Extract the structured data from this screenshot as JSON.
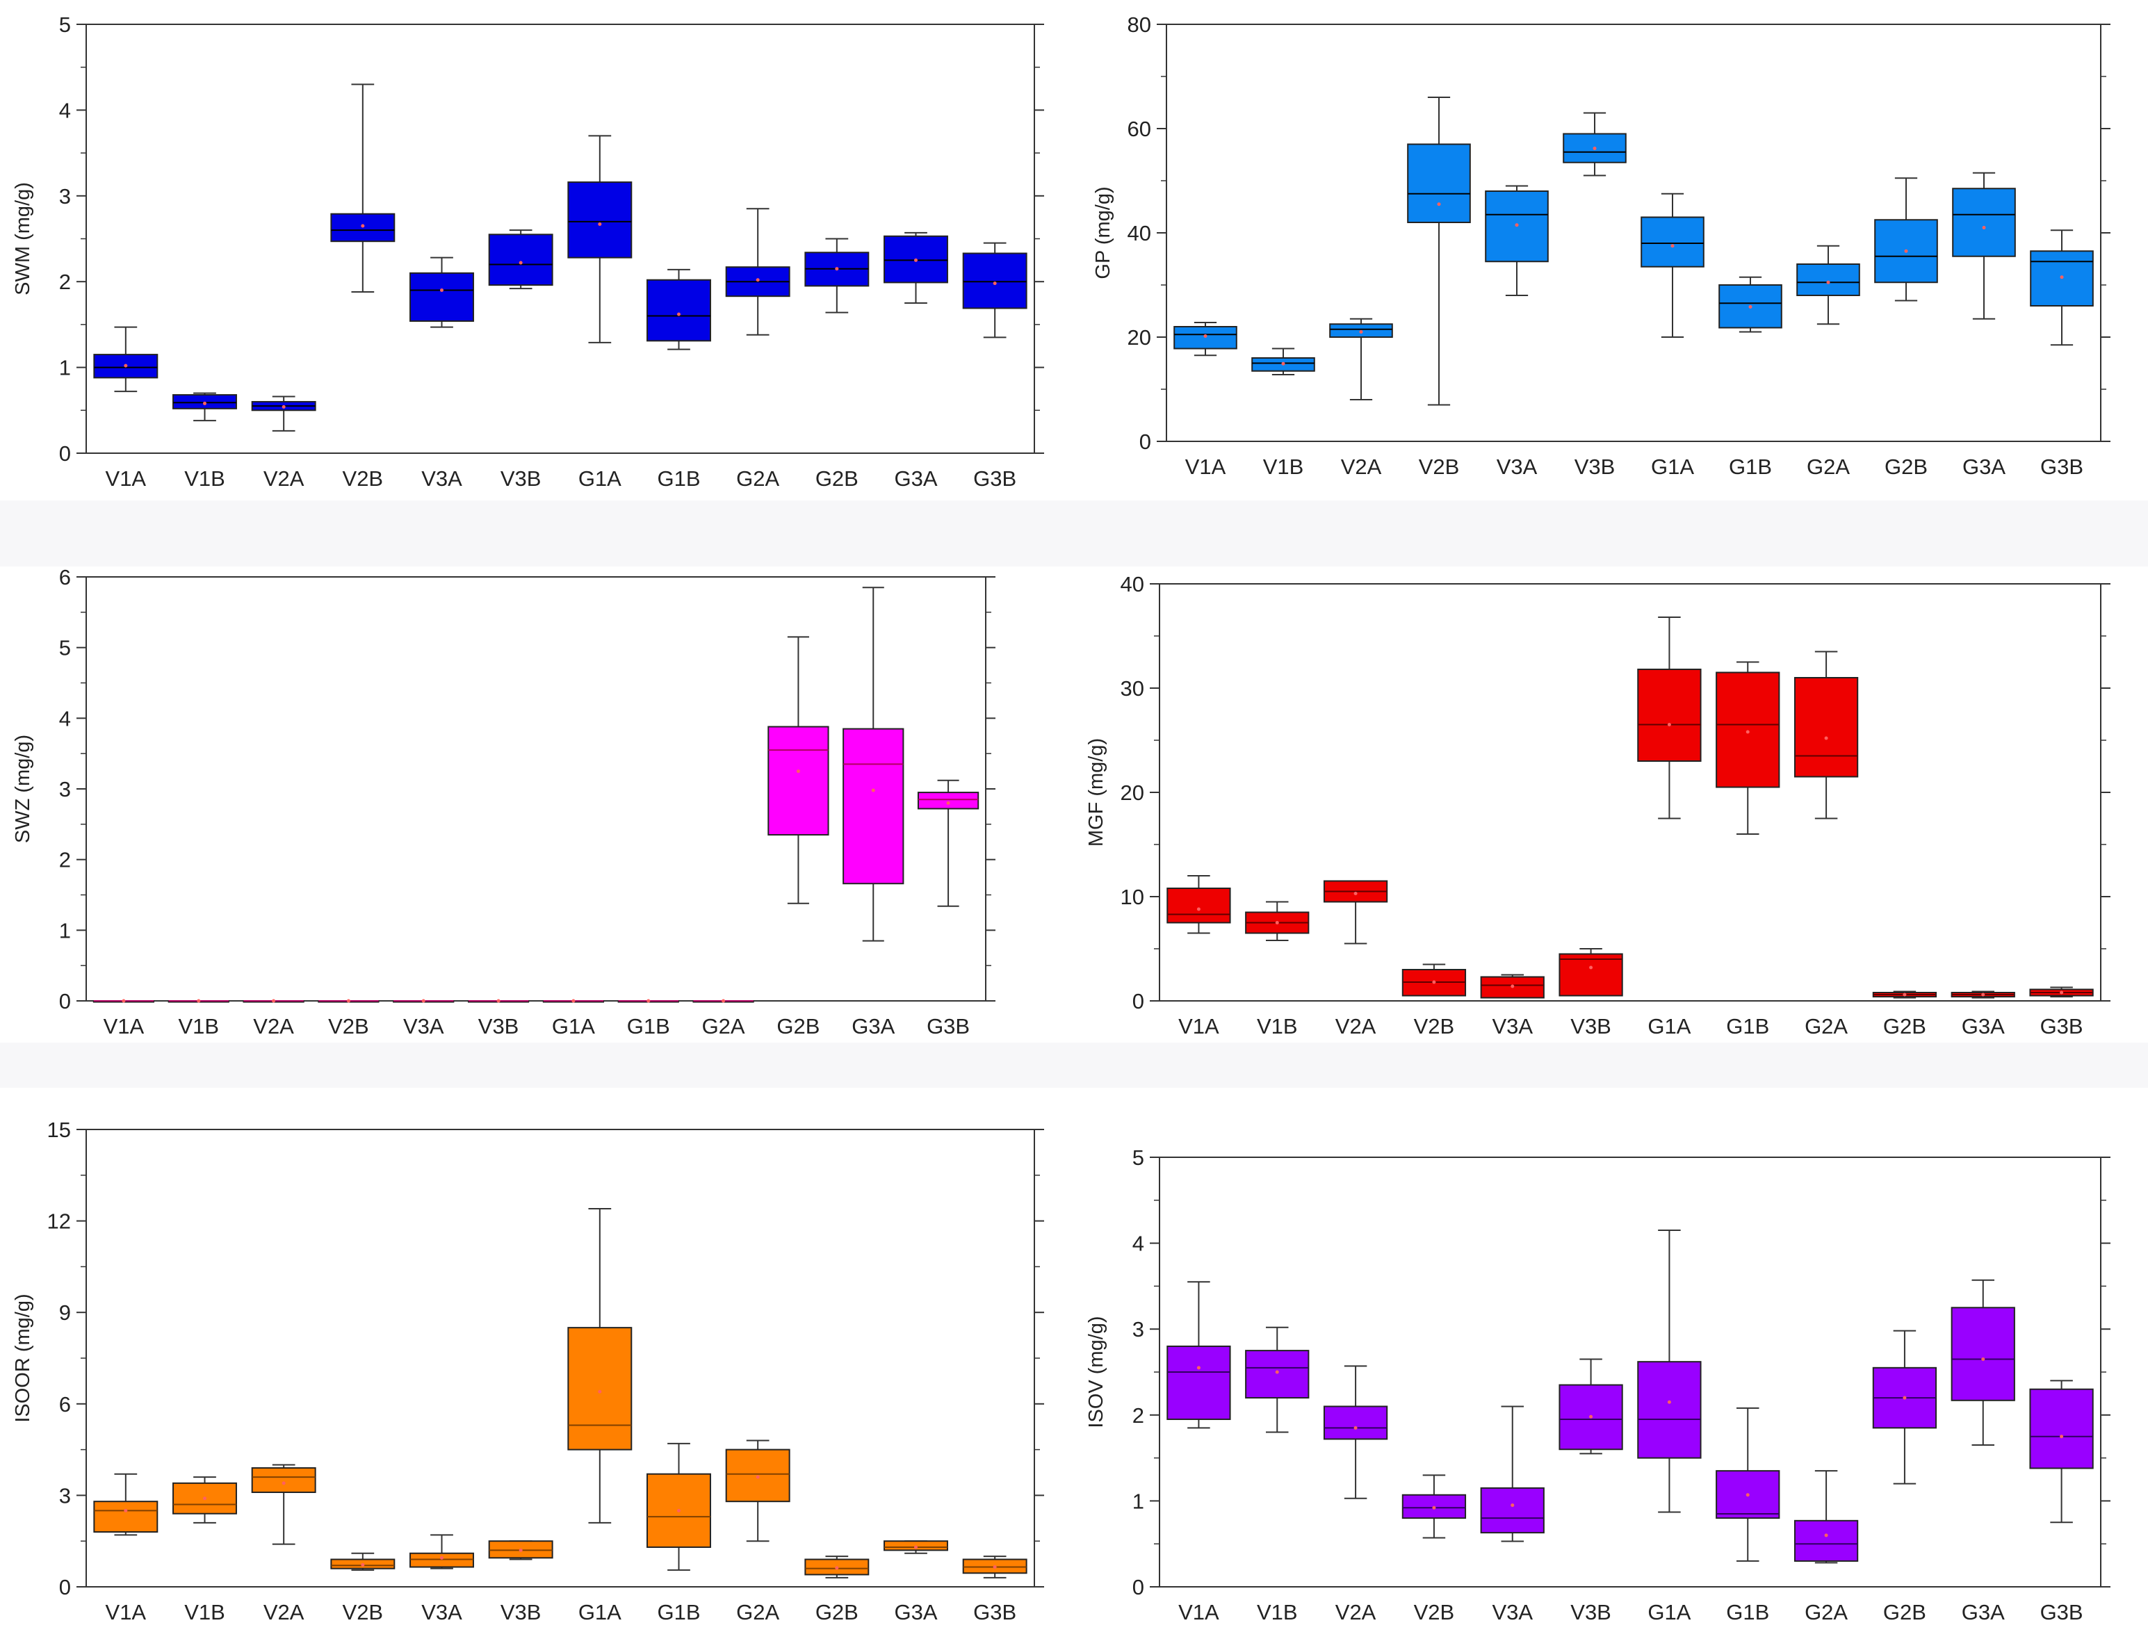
{
  "figure": {
    "panels_count": 6
  },
  "chart_data": [
    {
      "type": "box",
      "ylabel": "SWM (mg/g)",
      "ylim": [
        0,
        5
      ],
      "yticks": [
        0,
        1,
        2,
        3,
        4,
        5
      ],
      "color": "#0000e6",
      "median_color": "#000000",
      "categories": [
        "V1A",
        "V1B",
        "V2A",
        "V2B",
        "V3A",
        "V3B",
        "G1A",
        "G1B",
        "G2A",
        "G2B",
        "G3A",
        "G3B"
      ],
      "boxes": [
        {
          "min": 0.72,
          "q1": 0.88,
          "median": 1.0,
          "q3": 1.15,
          "max": 1.47,
          "mean": 1.02
        },
        {
          "min": 0.38,
          "q1": 0.52,
          "median": 0.59,
          "q3": 0.68,
          "max": 0.7,
          "mean": 0.58
        },
        {
          "min": 0.26,
          "q1": 0.5,
          "median": 0.55,
          "q3": 0.6,
          "max": 0.66,
          "mean": 0.54
        },
        {
          "min": 1.88,
          "q1": 2.47,
          "median": 2.6,
          "q3": 2.79,
          "max": 4.3,
          "mean": 2.65
        },
        {
          "min": 1.47,
          "q1": 1.54,
          "median": 1.9,
          "q3": 2.1,
          "max": 2.28,
          "mean": 1.9
        },
        {
          "min": 1.92,
          "q1": 1.96,
          "median": 2.2,
          "q3": 2.55,
          "max": 2.6,
          "mean": 2.22
        },
        {
          "min": 1.29,
          "q1": 2.28,
          "median": 2.7,
          "q3": 3.16,
          "max": 3.7,
          "mean": 2.67
        },
        {
          "min": 1.21,
          "q1": 1.31,
          "median": 1.6,
          "q3": 2.02,
          "max": 2.14,
          "mean": 1.62
        },
        {
          "min": 1.38,
          "q1": 1.83,
          "median": 2.0,
          "q3": 2.17,
          "max": 2.85,
          "mean": 2.02
        },
        {
          "min": 1.64,
          "q1": 1.95,
          "median": 2.15,
          "q3": 2.34,
          "max": 2.5,
          "mean": 2.15
        },
        {
          "min": 1.75,
          "q1": 1.99,
          "median": 2.25,
          "q3": 2.53,
          "max": 2.57,
          "mean": 2.25
        },
        {
          "min": 1.35,
          "q1": 1.69,
          "median": 2.0,
          "q3": 2.33,
          "max": 2.45,
          "mean": 1.98
        }
      ]
    },
    {
      "type": "box",
      "ylabel": "GP (mg/g)",
      "ylim": [
        0,
        80
      ],
      "yticks": [
        0,
        20,
        40,
        60,
        80
      ],
      "color": "#0a84f0",
      "median_color": "#000000",
      "categories": [
        "V1A",
        "V1B",
        "V2A",
        "V2B",
        "V3A",
        "V3B",
        "G1A",
        "G1B",
        "G2A",
        "G2B",
        "G3A",
        "G3B"
      ],
      "boxes": [
        {
          "min": 16.5,
          "q1": 17.8,
          "median": 20.5,
          "q3": 22.0,
          "max": 22.8,
          "mean": 20.2
        },
        {
          "min": 12.8,
          "q1": 13.5,
          "median": 15.0,
          "q3": 16.0,
          "max": 17.8,
          "mean": 14.9
        },
        {
          "min": 8.0,
          "q1": 20.0,
          "median": 21.5,
          "q3": 22.5,
          "max": 23.5,
          "mean": 21.0
        },
        {
          "min": 7.0,
          "q1": 42.0,
          "median": 47.5,
          "q3": 57.0,
          "max": 66.0,
          "mean": 45.5
        },
        {
          "min": 28.0,
          "q1": 34.5,
          "median": 43.5,
          "q3": 48.0,
          "max": 49.0,
          "mean": 41.5
        },
        {
          "min": 51.0,
          "q1": 53.5,
          "median": 55.5,
          "q3": 59.0,
          "max": 63.0,
          "mean": 56.2
        },
        {
          "min": 20.0,
          "q1": 33.5,
          "median": 38.0,
          "q3": 43.0,
          "max": 47.5,
          "mean": 37.5
        },
        {
          "min": 21.0,
          "q1": 21.8,
          "median": 26.5,
          "q3": 30.0,
          "max": 31.5,
          "mean": 25.8
        },
        {
          "min": 22.5,
          "q1": 28.0,
          "median": 30.5,
          "q3": 34.0,
          "max": 37.5,
          "mean": 30.5
        },
        {
          "min": 27.0,
          "q1": 30.5,
          "median": 35.5,
          "q3": 42.5,
          "max": 50.5,
          "mean": 36.5
        },
        {
          "min": 23.5,
          "q1": 35.5,
          "median": 43.5,
          "q3": 48.5,
          "max": 51.5,
          "mean": 41.0
        },
        {
          "min": 18.5,
          "q1": 26.0,
          "median": 34.5,
          "q3": 36.5,
          "max": 40.5,
          "mean": 31.5
        }
      ]
    },
    {
      "type": "box",
      "ylabel": "SWZ (mg/g)",
      "ylim": [
        0,
        6
      ],
      "yticks": [
        0,
        1,
        2,
        3,
        4,
        5,
        6
      ],
      "color": "#ff00ff",
      "median_color": "#b00060",
      "categories": [
        "V1A",
        "V1B",
        "V2A",
        "V2B",
        "V3A",
        "V3B",
        "G1A",
        "G1B",
        "G2A",
        "G2B",
        "G3A",
        "G3B"
      ],
      "boxes": [
        {
          "min": 0,
          "q1": 0,
          "median": 0,
          "q3": 0,
          "max": 0,
          "mean": 0
        },
        {
          "min": 0,
          "q1": 0,
          "median": 0,
          "q3": 0,
          "max": 0,
          "mean": 0
        },
        {
          "min": 0,
          "q1": 0,
          "median": 0,
          "q3": 0,
          "max": 0,
          "mean": 0
        },
        {
          "min": 0,
          "q1": 0,
          "median": 0,
          "q3": 0,
          "max": 0,
          "mean": 0
        },
        {
          "min": 0,
          "q1": 0,
          "median": 0,
          "q3": 0,
          "max": 0,
          "mean": 0
        },
        {
          "min": 0,
          "q1": 0,
          "median": 0,
          "q3": 0,
          "max": 0,
          "mean": 0
        },
        {
          "min": 0,
          "q1": 0,
          "median": 0,
          "q3": 0,
          "max": 0,
          "mean": 0
        },
        {
          "min": 0,
          "q1": 0,
          "median": 0,
          "q3": 0,
          "max": 0,
          "mean": 0
        },
        {
          "min": 0,
          "q1": 0,
          "median": 0,
          "q3": 0,
          "max": 0,
          "mean": 0
        },
        {
          "min": 1.38,
          "q1": 2.35,
          "median": 3.55,
          "q3": 3.88,
          "max": 5.15,
          "mean": 3.25
        },
        {
          "min": 0.85,
          "q1": 1.66,
          "median": 3.35,
          "q3": 3.85,
          "max": 5.85,
          "mean": 2.98
        },
        {
          "min": 1.34,
          "q1": 2.72,
          "median": 2.85,
          "q3": 2.95,
          "max": 3.12,
          "mean": 2.8
        }
      ]
    },
    {
      "type": "box",
      "ylabel": "MGF (mg/g)",
      "ylim": [
        0,
        40
      ],
      "yticks": [
        0,
        10,
        20,
        30,
        40
      ],
      "color": "#ee0000",
      "median_color": "#600000",
      "categories": [
        "V1A",
        "V1B",
        "V2A",
        "V2B",
        "V3A",
        "V3B",
        "G1A",
        "G1B",
        "G2A",
        "G2B",
        "G3A",
        "G3B"
      ],
      "boxes": [
        {
          "min": 6.5,
          "q1": 7.5,
          "median": 8.3,
          "q3": 10.8,
          "max": 12.0,
          "mean": 8.8
        },
        {
          "min": 5.8,
          "q1": 6.5,
          "median": 7.5,
          "q3": 8.5,
          "max": 9.5,
          "mean": 7.5
        },
        {
          "min": 5.5,
          "q1": 9.5,
          "median": 10.5,
          "q3": 11.5,
          "max": 11.5,
          "mean": 10.3
        },
        {
          "min": 0.5,
          "q1": 0.5,
          "median": 1.8,
          "q3": 3.0,
          "max": 3.5,
          "mean": 1.8
        },
        {
          "min": 0.3,
          "q1": 0.3,
          "median": 1.5,
          "q3": 2.3,
          "max": 2.5,
          "mean": 1.4
        },
        {
          "min": 0.5,
          "q1": 0.5,
          "median": 4.0,
          "q3": 4.5,
          "max": 5.0,
          "mean": 3.2
        },
        {
          "min": 17.5,
          "q1": 23.0,
          "median": 26.5,
          "q3": 31.8,
          "max": 36.8,
          "mean": 26.5
        },
        {
          "min": 16.0,
          "q1": 20.5,
          "median": 26.5,
          "q3": 31.5,
          "max": 32.5,
          "mean": 25.8
        },
        {
          "min": 17.5,
          "q1": 21.5,
          "median": 23.5,
          "q3": 31.0,
          "max": 33.5,
          "mean": 25.2
        },
        {
          "min": 0.3,
          "q1": 0.4,
          "median": 0.6,
          "q3": 0.8,
          "max": 0.9,
          "mean": 0.6
        },
        {
          "min": 0.3,
          "q1": 0.4,
          "median": 0.6,
          "q3": 0.8,
          "max": 0.9,
          "mean": 0.6
        },
        {
          "min": 0.4,
          "q1": 0.5,
          "median": 0.8,
          "q3": 1.1,
          "max": 1.3,
          "mean": 0.8
        }
      ]
    },
    {
      "type": "box",
      "ylabel": "ISOOR (mg/g)",
      "ylim": [
        0,
        15
      ],
      "yticks": [
        0,
        3,
        6,
        9,
        12,
        15
      ],
      "color": "#ff8000",
      "median_color": "#804000",
      "categories": [
        "V1A",
        "V1B",
        "V2A",
        "V2B",
        "V3A",
        "V3B",
        "G1A",
        "G1B",
        "G2A",
        "G2B",
        "G3A",
        "G3B"
      ],
      "boxes": [
        {
          "min": 1.7,
          "q1": 1.8,
          "median": 2.5,
          "q3": 2.8,
          "max": 3.7,
          "mean": 2.5
        },
        {
          "min": 2.1,
          "q1": 2.4,
          "median": 2.7,
          "q3": 3.4,
          "max": 3.6,
          "mean": 2.9
        },
        {
          "min": 1.4,
          "q1": 3.1,
          "median": 3.6,
          "q3": 3.9,
          "max": 4.0,
          "mean": 3.4
        },
        {
          "min": 0.55,
          "q1": 0.6,
          "median": 0.7,
          "q3": 0.9,
          "max": 1.1,
          "mean": 0.72
        },
        {
          "min": 0.6,
          "q1": 0.65,
          "median": 0.9,
          "q3": 1.1,
          "max": 1.7,
          "mean": 0.95
        },
        {
          "min": 0.9,
          "q1": 0.95,
          "median": 1.2,
          "q3": 1.5,
          "max": 1.5,
          "mean": 1.2
        },
        {
          "min": 2.1,
          "q1": 4.5,
          "median": 5.3,
          "q3": 8.5,
          "max": 12.4,
          "mean": 6.4
        },
        {
          "min": 0.55,
          "q1": 1.3,
          "median": 2.3,
          "q3": 3.7,
          "max": 4.7,
          "mean": 2.5
        },
        {
          "min": 1.5,
          "q1": 2.8,
          "median": 3.7,
          "q3": 4.5,
          "max": 4.8,
          "mean": 3.6
        },
        {
          "min": 0.3,
          "q1": 0.4,
          "median": 0.6,
          "q3": 0.9,
          "max": 1.0,
          "mean": 0.62
        },
        {
          "min": 1.1,
          "q1": 1.2,
          "median": 1.3,
          "q3": 1.5,
          "max": 1.5,
          "mean": 1.3
        },
        {
          "min": 0.3,
          "q1": 0.45,
          "median": 0.65,
          "q3": 0.9,
          "max": 1.0,
          "mean": 0.65
        }
      ]
    },
    {
      "type": "box",
      "ylabel": "ISOV (mg/g)",
      "ylim": [
        0,
        5
      ],
      "yticks": [
        0,
        1,
        2,
        3,
        4,
        5
      ],
      "color": "#9900ff",
      "median_color": "#300060",
      "categories": [
        "V1A",
        "V1B",
        "V2A",
        "V2B",
        "V3A",
        "V3B",
        "G1A",
        "G1B",
        "G2A",
        "G2B",
        "G3A",
        "G3B"
      ],
      "boxes": [
        {
          "min": 1.85,
          "q1": 1.95,
          "median": 2.5,
          "q3": 2.8,
          "max": 3.55,
          "mean": 2.55
        },
        {
          "min": 1.8,
          "q1": 2.2,
          "median": 2.55,
          "q3": 2.75,
          "max": 3.02,
          "mean": 2.5
        },
        {
          "min": 1.03,
          "q1": 1.72,
          "median": 1.85,
          "q3": 2.1,
          "max": 2.57,
          "mean": 1.85
        },
        {
          "min": 0.57,
          "q1": 0.8,
          "median": 0.92,
          "q3": 1.07,
          "max": 1.3,
          "mean": 0.92
        },
        {
          "min": 0.53,
          "q1": 0.63,
          "median": 0.8,
          "q3": 1.15,
          "max": 2.1,
          "mean": 0.95
        },
        {
          "min": 1.55,
          "q1": 1.6,
          "median": 1.95,
          "q3": 2.35,
          "max": 2.65,
          "mean": 1.98
        },
        {
          "min": 0.87,
          "q1": 1.5,
          "median": 1.95,
          "q3": 2.62,
          "max": 4.15,
          "mean": 2.15
        },
        {
          "min": 0.3,
          "q1": 0.8,
          "median": 0.85,
          "q3": 1.35,
          "max": 2.08,
          "mean": 1.07
        },
        {
          "min": 0.28,
          "q1": 0.3,
          "median": 0.5,
          "q3": 0.77,
          "max": 1.35,
          "mean": 0.6
        },
        {
          "min": 1.2,
          "q1": 1.85,
          "median": 2.2,
          "q3": 2.55,
          "max": 2.98,
          "mean": 2.2
        },
        {
          "min": 1.65,
          "q1": 2.17,
          "median": 2.65,
          "q3": 3.25,
          "max": 3.57,
          "mean": 2.65
        },
        {
          "min": 0.75,
          "q1": 1.38,
          "median": 1.75,
          "q3": 2.3,
          "max": 2.4,
          "mean": 1.75
        }
      ]
    }
  ]
}
